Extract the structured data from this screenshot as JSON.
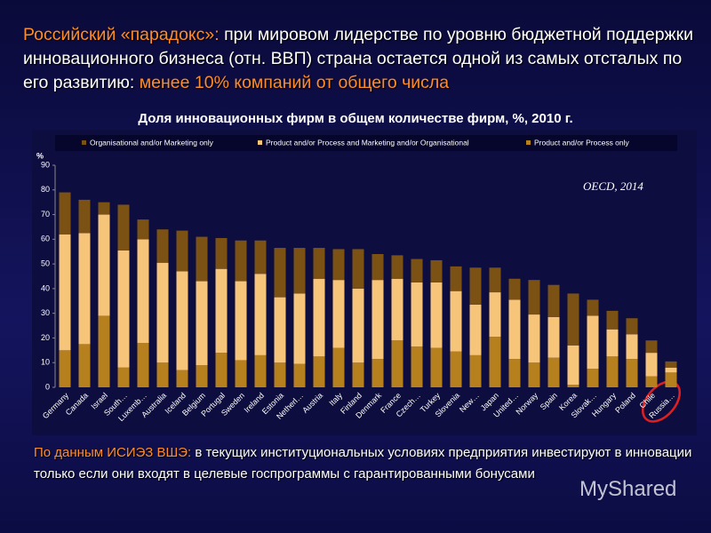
{
  "slide": {
    "heading": [
      "Российский «парадокс»:",
      "при мировом лидерстве по уровню бюджетной поддержки инновационного бизнеса (отн. ВВП) страна остается одной из самых отсталых по его развитию:",
      "менее 10% компаний от общего числа"
    ],
    "footer": [
      "По данным ИСИЭЗ ВШЭ:",
      "в текущих институциональных условиях предприятия инвестируют в инновации только если они входят в целевые госпрограммы с гарантированными бонусами"
    ],
    "watermark": "MyShared"
  },
  "chart_data": {
    "type": "stacked_bar",
    "title": "Доля инновационных фирм в общем количестве фирм, %, 2010 г.",
    "y_label": "%",
    "annotation": "OECD, 2014",
    "categories": [
      "Germany",
      "Canada",
      "Israel",
      "South…",
      "Luxemb…",
      "Australia",
      "Iceland",
      "Belgium",
      "Portugal",
      "Sweden",
      "Ireland",
      "Estonia",
      "Netherl…",
      "Austria",
      "Italy",
      "Finland",
      "Denmark",
      "France",
      "Czech…",
      "Turkey",
      "Slovenia",
      "New…",
      "Japan",
      "United…",
      "Norway",
      "Spain",
      "Korea",
      "Slovak…",
      "Hungary",
      "Poland",
      "Chile",
      "Russia…"
    ],
    "series": [
      {
        "name": "Organisational and/or Marketing only",
        "color": "#7b5214",
        "values": [
          17,
          13.5,
          5,
          18.5,
          8,
          13.5,
          16.5,
          18,
          12.5,
          16.5,
          13.5,
          20,
          18.5,
          12.5,
          12.5,
          16,
          10.5,
          9.5,
          9.5,
          9,
          10,
          15,
          10,
          8.5,
          14,
          13,
          21,
          6.5,
          7.5,
          6.5,
          5,
          2.5
        ]
      },
      {
        "name": "Product and/or Process and Marketing and/or Organisational",
        "color": "#f7c57a",
        "values": [
          47,
          45,
          41,
          47.5,
          42,
          40.5,
          40,
          34,
          34,
          32,
          33,
          26.5,
          28.5,
          31.5,
          27.5,
          30,
          32,
          25,
          26,
          26.5,
          24.5,
          20.5,
          18,
          24,
          19.5,
          16.5,
          16,
          21.5,
          11,
          10,
          9.5,
          2
        ]
      },
      {
        "name": "Product and/or Process only",
        "color": "#b7801f",
        "values": [
          15,
          17.5,
          29,
          8,
          18,
          10,
          7,
          9,
          14,
          11,
          13,
          10,
          9.5,
          12.5,
          16,
          10,
          11.5,
          19,
          16.5,
          16,
          14.5,
          13,
          20.5,
          11.5,
          10,
          12,
          1,
          7.5,
          12.5,
          11.5,
          4.5,
          6
        ]
      }
    ],
    "ylim": [
      0,
      90
    ],
    "yticks": [
      0,
      10,
      20,
      30,
      40,
      50,
      60,
      70,
      80,
      90
    ]
  }
}
